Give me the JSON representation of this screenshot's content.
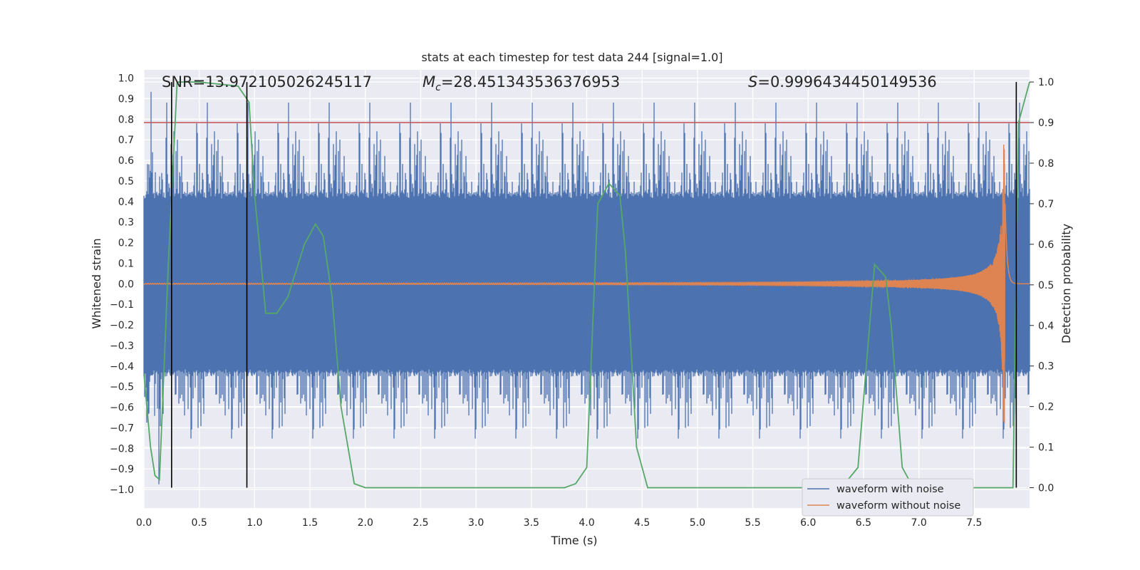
{
  "chart_data": {
    "type": "line",
    "title": "stats at each timestep for test data 244 [signal=1.0]",
    "xlabel": "Time (s)",
    "ylabel_left": "Whitened strain",
    "ylabel_right": "Detection probability",
    "xlim": [
      0.0,
      8.0
    ],
    "ylim_left": [
      -1.09,
      1.04
    ],
    "ylim_right": [
      -0.05,
      1.03
    ],
    "x_ticks": [
      "0.0",
      "0.5",
      "1.0",
      "1.5",
      "2.0",
      "2.5",
      "3.0",
      "3.5",
      "4.0",
      "4.5",
      "5.0",
      "5.5",
      "6.0",
      "6.5",
      "7.0",
      "7.5"
    ],
    "y_ticks_left": [
      "1.0",
      "0.9",
      "0.8",
      "0.7",
      "0.6",
      "0.5",
      "0.4",
      "0.3",
      "0.2",
      "0.1",
      "0.0",
      "-0.1",
      "-0.2",
      "-0.3",
      "-0.4",
      "-0.5",
      "-0.6",
      "-0.7",
      "-0.8",
      "-0.9",
      "-1.0"
    ],
    "y_ticks_right": [
      "1.0",
      "0.9",
      "0.8",
      "0.7",
      "0.6",
      "0.5",
      "0.4",
      "0.3",
      "0.2",
      "0.1",
      "0.0"
    ],
    "grid": true,
    "annotations": {
      "snr": "SNR=13.972105026245117",
      "mc_symbol": "M",
      "mc_sub": "c",
      "mc_value": "=28.451343536376953",
      "s_symbol": "S",
      "s_value": "=0.9996434450149536"
    },
    "threshold_probability": 0.9,
    "vertical_markers": [
      0.25,
      0.93,
      7.88
    ],
    "legend": {
      "position": "lower-right",
      "entries": [
        "waveform with noise",
        "waveform without noise"
      ]
    },
    "series": [
      {
        "name": "waveform with noise",
        "axis": "left",
        "color": "#4c72b0",
        "description": "dense noisy whitened strain, amplitude roughly ±0.45 with spikes to ±0.95",
        "envelope": 0.45,
        "spike_max": 0.95
      },
      {
        "name": "waveform without noise",
        "axis": "left",
        "color": "#dd8452",
        "chirp": {
          "t_merger": 7.76,
          "peak_amplitude": 0.68,
          "end": 7.9
        }
      },
      {
        "name": "detection probability",
        "axis": "right",
        "color": "#55a868",
        "x": [
          0.0,
          0.06,
          0.1,
          0.14,
          0.22,
          0.3,
          0.35,
          0.5,
          0.85,
          0.95,
          1.0,
          1.05,
          1.1,
          1.2,
          1.3,
          1.45,
          1.55,
          1.62,
          1.7,
          1.78,
          1.9,
          2.0,
          2.5,
          3.0,
          3.5,
          3.8,
          3.9,
          4.0,
          4.1,
          4.2,
          4.3,
          4.35,
          4.45,
          4.55,
          4.65,
          4.8,
          5.5,
          6.0,
          6.3,
          6.45,
          6.6,
          6.7,
          6.75,
          6.85,
          6.95,
          7.5,
          7.85,
          7.9,
          8.0
        ],
        "y": [
          0.28,
          0.1,
          0.03,
          0.02,
          0.55,
          1.0,
          1.0,
          1.0,
          0.99,
          0.95,
          0.72,
          0.58,
          0.43,
          0.43,
          0.47,
          0.6,
          0.65,
          0.62,
          0.47,
          0.2,
          0.01,
          0.0,
          0.0,
          0.0,
          0.0,
          0.0,
          0.01,
          0.05,
          0.7,
          0.75,
          0.72,
          0.58,
          0.1,
          0.0,
          0.0,
          0.0,
          0.0,
          0.0,
          0.0,
          0.05,
          0.55,
          0.52,
          0.4,
          0.05,
          0.0,
          0.0,
          0.0,
          0.9,
          1.0
        ]
      }
    ]
  },
  "colors": {
    "plot_background": "#eaeaf2",
    "grid": "#ffffff",
    "threshold": "#c44e52",
    "marker": "#000000"
  }
}
